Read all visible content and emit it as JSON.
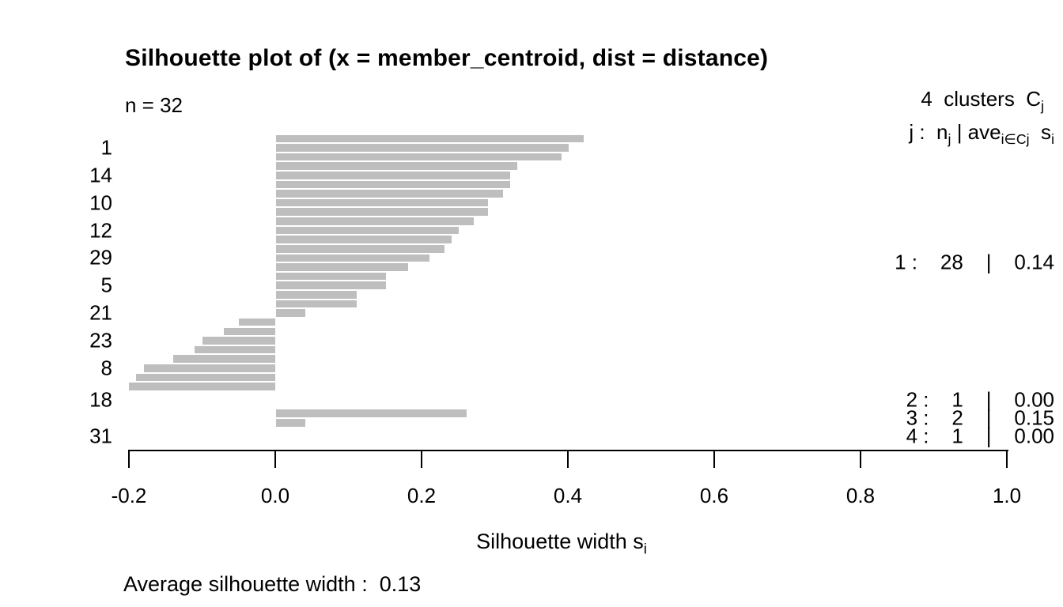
{
  "title": "Silhouette plot of (x = member_centroid, dist = distance)",
  "n_label": "n = 32",
  "legend": {
    "clusters_line": {
      "pre": "4  clusters  C",
      "sub": "j"
    },
    "formula": {
      "p1": "j :  n",
      "s1": "j",
      "p2": " | ave",
      "s2": "i∈Cj",
      "p3": "  s",
      "s3": "i"
    }
  },
  "xaxis_title": {
    "pre": "Silhouette width s",
    "sub": "i"
  },
  "footer": {
    "average_label": "Average silhouette width :  0.13"
  },
  "colors": {
    "bar": "#bebebe",
    "text": "#000000",
    "background": "#ffffff"
  },
  "chart_data": {
    "type": "bar",
    "orientation": "horizontal",
    "title": "Silhouette plot of (x = member_centroid, dist = distance)",
    "n": 32,
    "xlabel": "Silhouette width si",
    "xlim": [
      -0.2,
      1.0
    ],
    "grid": false,
    "average_silhouette_width": 0.13,
    "x_ticks": [
      {
        "label": "-0.2",
        "value": -0.2
      },
      {
        "label": "0.0",
        "value": 0.0
      },
      {
        "label": "0.2",
        "value": 0.2
      },
      {
        "label": "0.4",
        "value": 0.4
      },
      {
        "label": "0.6",
        "value": 0.6
      },
      {
        "label": "0.8",
        "value": 0.8
      },
      {
        "label": "1.0",
        "value": 1.0
      }
    ],
    "clusters": [
      {
        "j": 1,
        "size": 28,
        "ave": "0.14",
        "annotation": "1 :    28    |    0.14",
        "values": [
          0.42,
          0.4,
          0.39,
          0.33,
          0.32,
          0.32,
          0.31,
          0.29,
          0.29,
          0.27,
          0.25,
          0.24,
          0.23,
          0.21,
          0.18,
          0.15,
          0.15,
          0.11,
          0.11,
          0.04,
          -0.05,
          -0.07,
          -0.1,
          -0.11,
          -0.14,
          -0.18,
          -0.19,
          -0.2
        ]
      },
      {
        "j": 2,
        "size": 1,
        "ave": "0.00",
        "annotation": "2 :    1    |    0.00",
        "values": [
          0.0
        ]
      },
      {
        "j": 3,
        "size": 2,
        "ave": "0.15",
        "annotation": "3 :    2    |    0.15",
        "values": [
          0.26,
          0.04
        ]
      },
      {
        "j": 4,
        "size": 1,
        "ave": "0.00",
        "annotation": "4 :    1    |    0.00",
        "values": [
          0.0
        ]
      }
    ],
    "row_labels": [
      {
        "label": "1",
        "row": 1
      },
      {
        "label": "14",
        "row": 4
      },
      {
        "label": "10",
        "row": 7
      },
      {
        "label": "12",
        "row": 10
      },
      {
        "label": "29",
        "row": 13
      },
      {
        "label": "5",
        "row": 16
      },
      {
        "label": "21",
        "row": 19
      },
      {
        "label": "23",
        "row": 22
      },
      {
        "label": "8",
        "row": 25
      },
      {
        "label": "18",
        "row": 28
      },
      {
        "label": "31",
        "row": 31
      }
    ]
  }
}
